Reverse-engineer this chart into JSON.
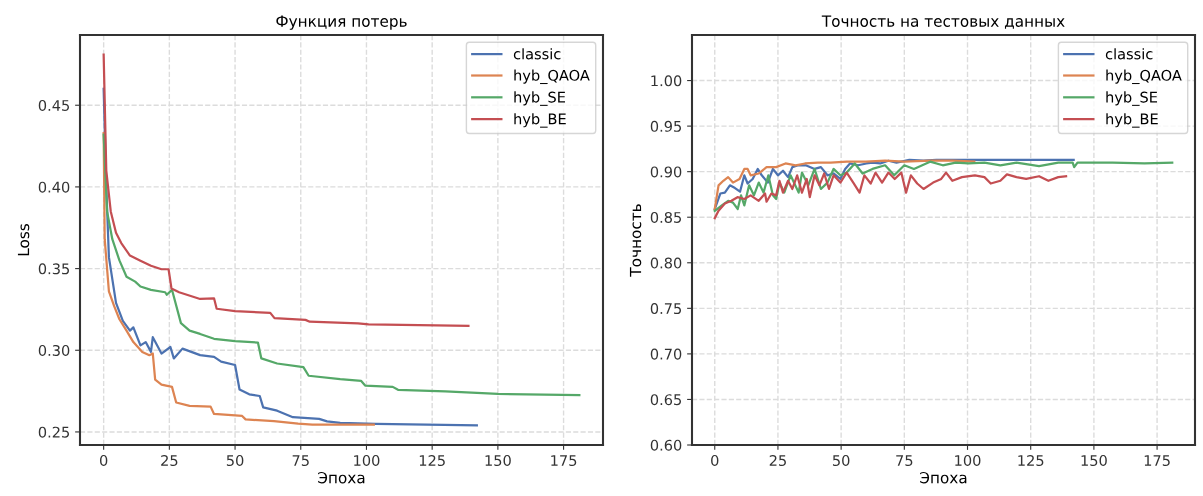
{
  "chart_data": [
    {
      "type": "line",
      "title": "Функция потерь",
      "xlabel": "Эпоха",
      "ylabel": "Loss",
      "xlim": [
        -9,
        190
      ],
      "ylim": [
        0.242,
        0.493
      ],
      "xticks": [
        0,
        25,
        50,
        75,
        100,
        125,
        150,
        175
      ],
      "yticks": [
        {
          "value": 0.25,
          "label": "0.25"
        },
        {
          "value": 0.3,
          "label": "0.30"
        },
        {
          "value": 0.35,
          "label": "0.35"
        },
        {
          "value": 0.4,
          "label": "0.40"
        },
        {
          "value": 0.45,
          "label": "0.45"
        }
      ],
      "grid": true,
      "legend": "top right",
      "line_style": "solid",
      "series": [
        {
          "name": "classic",
          "color": "#4c72b0",
          "x": [
            0,
            1,
            2,
            4.7,
            7.3,
            10,
            11.3,
            14,
            16,
            18,
            18.7,
            22,
            25.4,
            26.7,
            30,
            36.7,
            42,
            44.7,
            50,
            51.7,
            55.4,
            59.4,
            60.7,
            66,
            72,
            82,
            85,
            90,
            103.5,
            142
          ],
          "values": [
            0.46,
            0.4,
            0.357,
            0.329,
            0.318,
            0.312,
            0.314,
            0.303,
            0.305,
            0.299,
            0.308,
            0.298,
            0.302,
            0.295,
            0.301,
            0.297,
            0.296,
            0.293,
            0.291,
            0.276,
            0.273,
            0.272,
            0.265,
            0.263,
            0.259,
            0.258,
            0.2565,
            0.2555,
            0.2549,
            0.254
          ]
        },
        {
          "name": "hyb_QAOA",
          "color": "#dd8452",
          "x": [
            0,
            0.4,
            2,
            4,
            6,
            8.7,
            11.3,
            14.7,
            17.4,
            18.7,
            19.6,
            22,
            26,
            27.6,
            32.7,
            40.7,
            42,
            52.7,
            54,
            64.8,
            74,
            79.4,
            102.8
          ],
          "values": [
            0.433,
            0.368,
            0.336,
            0.327,
            0.319,
            0.312,
            0.305,
            0.299,
            0.297,
            0.298,
            0.282,
            0.279,
            0.2776,
            0.268,
            0.266,
            0.2655,
            0.261,
            0.2598,
            0.2577,
            0.2566,
            0.2551,
            0.2545,
            0.2545
          ]
        },
        {
          "name": "hyb_SE",
          "color": "#55a868",
          "x": [
            0,
            1.3,
            3.3,
            6,
            8.7,
            12,
            14,
            18,
            23.4,
            24,
            26,
            29.4,
            32.7,
            36.7,
            42,
            50,
            58.7,
            60,
            66,
            76,
            78,
            90,
            98,
            99.5,
            110,
            112,
            130,
            150,
            181
          ],
          "values": [
            0.432,
            0.385,
            0.368,
            0.355,
            0.345,
            0.342,
            0.339,
            0.337,
            0.3355,
            0.334,
            0.337,
            0.3166,
            0.312,
            0.31,
            0.307,
            0.3056,
            0.3047,
            0.295,
            0.2919,
            0.2897,
            0.2844,
            0.2823,
            0.2812,
            0.2784,
            0.2776,
            0.2758,
            0.2748,
            0.2733,
            0.2726
          ]
        },
        {
          "name": "hyb_BE",
          "color": "#c44e52",
          "x": [
            0,
            1,
            2.7,
            4.7,
            6.7,
            10,
            14,
            18,
            22,
            24.7,
            25.8,
            28.7,
            36.7,
            42,
            43,
            50,
            63.4,
            65,
            76.8,
            78.4,
            96.8,
            100.8,
            138.8
          ],
          "values": [
            0.481,
            0.41,
            0.385,
            0.372,
            0.3656,
            0.358,
            0.3548,
            0.3517,
            0.3496,
            0.3496,
            0.3378,
            0.3355,
            0.3314,
            0.3318,
            0.3254,
            0.324,
            0.3229,
            0.3197,
            0.3186,
            0.3175,
            0.3165,
            0.3158,
            0.315
          ]
        }
      ]
    },
    {
      "type": "line",
      "title": "Точность на тестовых данных",
      "xlabel": "Эпоха",
      "ylabel": "Точность",
      "xlim": [
        -9,
        190
      ],
      "ylim": [
        0.6,
        1.05
      ],
      "xticks": [
        0,
        25,
        50,
        75,
        100,
        125,
        150,
        175
      ],
      "yticks": [
        {
          "value": 0.6,
          "label": "0.60"
        },
        {
          "value": 0.65,
          "label": "0.65"
        },
        {
          "value": 0.7,
          "label": "0.70"
        },
        {
          "value": 0.75,
          "label": "0.75"
        },
        {
          "value": 0.8,
          "label": "0.80"
        },
        {
          "value": 0.85,
          "label": "0.85"
        },
        {
          "value": 0.9,
          "label": "0.90"
        },
        {
          "value": 0.95,
          "label": "0.95"
        },
        {
          "value": 1.0,
          "label": "1.00"
        }
      ],
      "grid": true,
      "legend": "top right",
      "line_style": "solid",
      "series": [
        {
          "name": "classic",
          "color": "#4c72b0",
          "x": [
            0,
            2.2,
            4,
            6,
            8,
            10,
            11.7,
            13,
            15,
            17,
            18.6,
            21,
            23,
            25,
            27,
            29,
            30.7,
            33,
            36,
            39.5,
            42,
            44.6,
            47,
            49.7,
            51.6,
            53.5,
            56.7,
            60,
            62.4,
            65.5,
            68.7,
            71.9,
            77,
            82.6,
            87.7,
            100.4,
            113,
            125.7,
            142
          ],
          "values": [
            0.859,
            0.876,
            0.877,
            0.885,
            0.882,
            0.878,
            0.896,
            0.887,
            0.892,
            0.903,
            0.896,
            0.888,
            0.903,
            0.896,
            0.901,
            0.894,
            0.905,
            0.907,
            0.907,
            0.903,
            0.905,
            0.896,
            0.898,
            0.892,
            0.903,
            0.909,
            0.907,
            0.909,
            0.91,
            0.909,
            0.912,
            0.91,
            0.913,
            0.912,
            0.913,
            0.913,
            0.913,
            0.913,
            0.913
          ]
        },
        {
          "name": "hyb_QAOA",
          "color": "#dd8452",
          "x": [
            0,
            1.5,
            3.4,
            5.3,
            7.2,
            9.8,
            11.7,
            13,
            14.2,
            17.4,
            20.5,
            24.3,
            28,
            32,
            35.7,
            40.8,
            45.9,
            52.2,
            59.8,
            67.4,
            75,
            85.2,
            94,
            102.7
          ],
          "values": [
            0.859,
            0.885,
            0.89,
            0.894,
            0.888,
            0.892,
            0.903,
            0.903,
            0.896,
            0.898,
            0.905,
            0.905,
            0.909,
            0.907,
            0.909,
            0.91,
            0.91,
            0.911,
            0.911,
            0.912,
            0.911,
            0.912,
            0.912,
            0.911
          ]
        },
        {
          "name": "hyb_SE",
          "color": "#55a868",
          "x": [
            0,
            2.8,
            5.3,
            7.2,
            9.1,
            10.4,
            11.7,
            13.6,
            15.5,
            17.4,
            19.3,
            21.2,
            23,
            24.3,
            25.6,
            27.5,
            30,
            33.2,
            34.5,
            37,
            39.5,
            42,
            44.6,
            47,
            49.7,
            52.2,
            55.4,
            58.5,
            62.4,
            67.4,
            71,
            75,
            78.8,
            85.2,
            90.2,
            95.3,
            100.4,
            106.7,
            113,
            119.4,
            128.3,
            135.9,
            141.6,
            142.2,
            143.5,
            157.4,
            170,
            181
          ],
          "values": [
            0.857,
            0.863,
            0.868,
            0.866,
            0.859,
            0.874,
            0.863,
            0.885,
            0.874,
            0.888,
            0.877,
            0.896,
            0.874,
            0.87,
            0.888,
            0.877,
            0.896,
            0.877,
            0.899,
            0.885,
            0.903,
            0.881,
            0.888,
            0.903,
            0.896,
            0.899,
            0.909,
            0.898,
            0.903,
            0.907,
            0.896,
            0.907,
            0.903,
            0.911,
            0.907,
            0.91,
            0.909,
            0.91,
            0.907,
            0.91,
            0.906,
            0.91,
            0.91,
            0.905,
            0.91,
            0.91,
            0.909,
            0.91
          ]
        },
        {
          "name": "hyb_BE",
          "color": "#c44e52",
          "x": [
            0,
            1.5,
            4,
            6.6,
            9,
            11.7,
            14.2,
            17.4,
            19.9,
            20.5,
            22.4,
            24.3,
            25.6,
            27,
            29,
            30.7,
            32.6,
            34.5,
            36.4,
            37.6,
            39.5,
            41.4,
            43.3,
            45.2,
            47,
            49.7,
            52.2,
            54.8,
            57.3,
            59.2,
            61.7,
            63.6,
            66.2,
            68.7,
            71.2,
            73.8,
            75.7,
            77.6,
            80.1,
            82.6,
            86.4,
            89.6,
            91.5,
            94,
            97.8,
            102.9,
            106.7,
            109.2,
            113,
            115.6,
            119.4,
            123.2,
            128.3,
            132,
            135.9,
            139
          ],
          "values": [
            0.849,
            0.857,
            0.865,
            0.868,
            0.872,
            0.87,
            0.874,
            0.868,
            0.876,
            0.867,
            0.876,
            0.874,
            0.89,
            0.877,
            0.89,
            0.881,
            0.896,
            0.877,
            0.892,
            0.872,
            0.896,
            0.885,
            0.898,
            0.881,
            0.896,
            0.888,
            0.899,
            0.888,
            0.877,
            0.896,
            0.887,
            0.899,
            0.888,
            0.899,
            0.892,
            0.899,
            0.877,
            0.896,
            0.887,
            0.881,
            0.888,
            0.892,
            0.899,
            0.89,
            0.894,
            0.896,
            0.894,
            0.887,
            0.89,
            0.897,
            0.894,
            0.892,
            0.895,
            0.89,
            0.894,
            0.895
          ]
        }
      ]
    }
  ]
}
